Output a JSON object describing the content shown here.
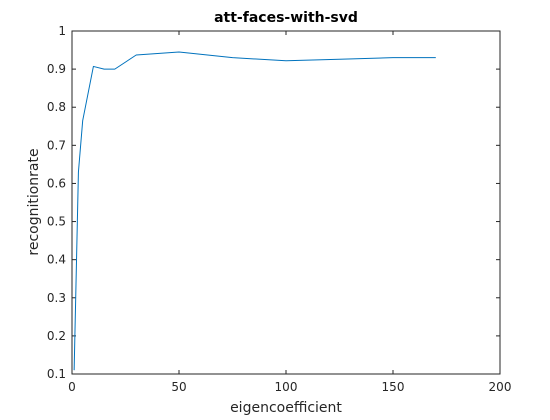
{
  "chart_data": {
    "type": "line",
    "title": "att-faces-with-svd",
    "xlabel": "eigencoefficient",
    "ylabel": "recognitionrate",
    "xlim": [
      0,
      200
    ],
    "ylim": [
      0.1,
      1
    ],
    "xticks": [
      0,
      50,
      100,
      150,
      200
    ],
    "yticks": [
      0.1,
      0.2,
      0.3,
      0.4,
      0.5,
      0.6,
      0.7,
      0.8,
      0.9,
      1
    ],
    "xtick_labels": [
      "0",
      "50",
      "100",
      "150",
      "200"
    ],
    "ytick_labels": [
      "0.1",
      "0.2",
      "0.3",
      "0.4",
      "0.5",
      "0.6",
      "0.7",
      "0.8",
      "0.9",
      "1"
    ],
    "grid": false,
    "series": [
      {
        "color": "#0072bd",
        "x": [
          1,
          3,
          5,
          10,
          15,
          20,
          30,
          50,
          75,
          100,
          125,
          150,
          170
        ],
        "y": [
          0.11,
          0.63,
          0.765,
          0.907,
          0.9,
          0.9,
          0.937,
          0.945,
          0.93,
          0.922,
          0.926,
          0.93,
          0.93
        ]
      }
    ]
  }
}
